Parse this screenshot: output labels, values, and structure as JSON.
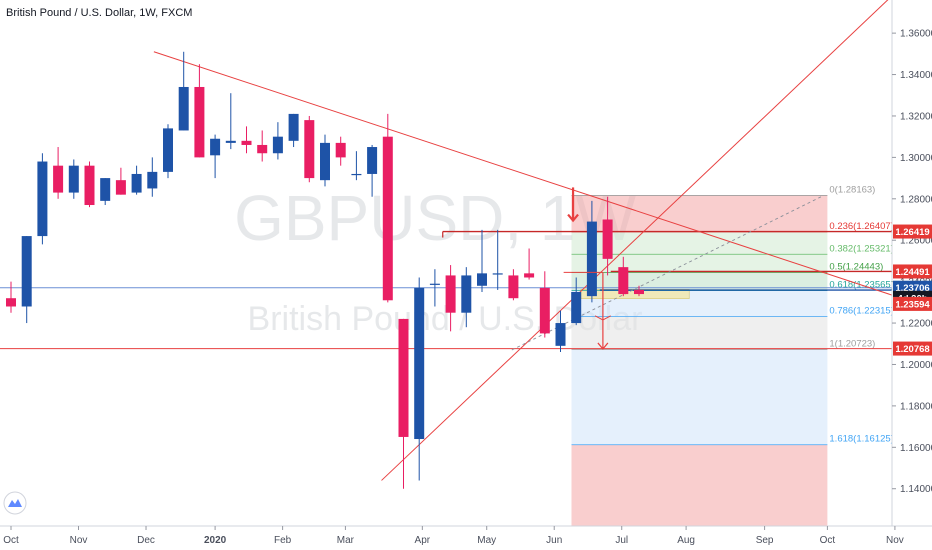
{
  "header": {
    "title": "British Pound / U.S. Dollar, 1W, FXCM"
  },
  "watermark": {
    "symbol": "GBPUSD, 1W",
    "name": "British Pound / U.S. Dollar"
  },
  "colors": {
    "bull": "#1e53a7",
    "bear": "#e91e63",
    "trend": "#e84141",
    "fib_red": "#f4a6a6",
    "fib_green": "#cfe9cf",
    "fib_blue": "#cfe4fa",
    "fib_grey": "#e2e2e2",
    "axis_bg": "#ffffff",
    "badge_red": "#e53935",
    "badge_blue": "#1e53a7",
    "badge_dark": "#131722"
  },
  "chart_data": {
    "type": "candlestick",
    "yrange": [
      1.122,
      1.376
    ],
    "yticks": [
      "1.36000",
      "1.34000",
      "1.32000",
      "1.30000",
      "1.28000",
      "1.26000",
      "1.24000",
      "1.22000",
      "1.20000",
      "1.18000",
      "1.16000",
      "1.14000"
    ],
    "xticks": [
      {
        "label": "Oct",
        "i": 0
      },
      {
        "label": "Nov",
        "i": 4.3
      },
      {
        "label": "Dec",
        "i": 8.6
      },
      {
        "label": "2020",
        "i": 13
      },
      {
        "label": "Feb",
        "i": 17.3
      },
      {
        "label": "Mar",
        "i": 21.3
      },
      {
        "label": "Apr",
        "i": 26.2
      },
      {
        "label": "May",
        "i": 30.3
      },
      {
        "label": "Jun",
        "i": 34.6
      },
      {
        "label": "Jul",
        "i": 38.9
      },
      {
        "label": "Aug",
        "i": 43
      },
      {
        "label": "Sep",
        "i": 48
      },
      {
        "label": "Oct",
        "i": 52
      },
      {
        "label": "Nov",
        "i": 56.3
      }
    ],
    "candles": [
      {
        "o": 1.232,
        "h": 1.24,
        "l": 1.225,
        "c": 1.228
      },
      {
        "o": 1.228,
        "h": 1.262,
        "l": 1.22,
        "c": 1.262
      },
      {
        "o": 1.262,
        "h": 1.302,
        "l": 1.258,
        "c": 1.298
      },
      {
        "o": 1.296,
        "h": 1.305,
        "l": 1.28,
        "c": 1.283
      },
      {
        "o": 1.283,
        "h": 1.299,
        "l": 1.28,
        "c": 1.296
      },
      {
        "o": 1.296,
        "h": 1.298,
        "l": 1.276,
        "c": 1.277
      },
      {
        "o": 1.279,
        "h": 1.29,
        "l": 1.277,
        "c": 1.29
      },
      {
        "o": 1.289,
        "h": 1.295,
        "l": 1.282,
        "c": 1.282
      },
      {
        "o": 1.283,
        "h": 1.296,
        "l": 1.282,
        "c": 1.292
      },
      {
        "o": 1.285,
        "h": 1.3,
        "l": 1.281,
        "c": 1.293
      },
      {
        "o": 1.293,
        "h": 1.316,
        "l": 1.29,
        "c": 1.314
      },
      {
        "o": 1.313,
        "h": 1.351,
        "l": 1.313,
        "c": 1.334
      },
      {
        "o": 1.334,
        "h": 1.345,
        "l": 1.3,
        "c": 1.3
      },
      {
        "o": 1.301,
        "h": 1.311,
        "l": 1.29,
        "c": 1.309
      },
      {
        "o": 1.307,
        "h": 1.331,
        "l": 1.304,
        "c": 1.308
      },
      {
        "o": 1.308,
        "h": 1.315,
        "l": 1.302,
        "c": 1.306
      },
      {
        "o": 1.306,
        "h": 1.313,
        "l": 1.298,
        "c": 1.302
      },
      {
        "o": 1.302,
        "h": 1.317,
        "l": 1.299,
        "c": 1.31
      },
      {
        "o": 1.308,
        "h": 1.321,
        "l": 1.305,
        "c": 1.321
      },
      {
        "o": 1.318,
        "h": 1.32,
        "l": 1.288,
        "c": 1.29
      },
      {
        "o": 1.289,
        "h": 1.311,
        "l": 1.286,
        "c": 1.307
      },
      {
        "o": 1.307,
        "h": 1.31,
        "l": 1.296,
        "c": 1.3
      },
      {
        "o": 1.292,
        "h": 1.303,
        "l": 1.289,
        "c": 1.292
      },
      {
        "o": 1.292,
        "h": 1.306,
        "l": 1.281,
        "c": 1.305
      },
      {
        "o": 1.31,
        "h": 1.321,
        "l": 1.23,
        "c": 1.231
      },
      {
        "o": 1.222,
        "h": 1.222,
        "l": 1.14,
        "c": 1.165
      },
      {
        "o": 1.164,
        "h": 1.242,
        "l": 1.144,
        "c": 1.237
      },
      {
        "o": 1.239,
        "h": 1.246,
        "l": 1.228,
        "c": 1.239
      },
      {
        "o": 1.243,
        "h": 1.248,
        "l": 1.216,
        "c": 1.225
      },
      {
        "o": 1.225,
        "h": 1.247,
        "l": 1.218,
        "c": 1.243
      },
      {
        "o": 1.238,
        "h": 1.265,
        "l": 1.235,
        "c": 1.244
      },
      {
        "o": 1.244,
        "h": 1.265,
        "l": 1.236,
        "c": 1.244
      },
      {
        "o": 1.243,
        "h": 1.246,
        "l": 1.231,
        "c": 1.232
      },
      {
        "o": 1.244,
        "h": 1.256,
        "l": 1.241,
        "c": 1.242
      },
      {
        "o": 1.237,
        "h": 1.245,
        "l": 1.213,
        "c": 1.215
      },
      {
        "o": 1.209,
        "h": 1.226,
        "l": 1.206,
        "c": 1.22
      },
      {
        "o": 1.22,
        "h": 1.242,
        "l": 1.219,
        "c": 1.235
      },
      {
        "o": 1.233,
        "h": 1.279,
        "l": 1.23,
        "c": 1.269
      },
      {
        "o": 1.27,
        "h": 1.281,
        "l": 1.243,
        "c": 1.251
      },
      {
        "o": 1.247,
        "h": 1.252,
        "l": 1.233,
        "c": 1.234
      },
      {
        "o": 1.236,
        "h": 1.238,
        "l": 1.233,
        "c": 1.234
      }
    ],
    "fib": {
      "start_i": 35.7,
      "end_i": 52.0,
      "label_i": 52.0,
      "levels": [
        {
          "label": "0(1.28163)",
          "price": 1.28163,
          "color": "#9e9e9e"
        },
        {
          "label": "0.236(1.26407)",
          "price": 1.26407,
          "color": "#e53935"
        },
        {
          "label": "0.382(1.25321)",
          "price": 1.25321,
          "color": "#66bb6a"
        },
        {
          "label": "0.5(1.24443)",
          "price": 1.24443,
          "color": "#43a047"
        },
        {
          "label": "0.618(1.23565)",
          "price": 1.23565,
          "color": "#26a69a"
        },
        {
          "label": "0.786(1.22315)",
          "price": 1.22315,
          "color": "#42a5f5"
        },
        {
          "label": "1(1.20723)",
          "price": 1.20723,
          "color": "#9e9e9e"
        },
        {
          "label": "1.618(1.16125)",
          "price": 1.16125,
          "color": "#42a5f5"
        }
      ]
    },
    "price_badges": [
      {
        "label": "1.26419",
        "price": 1.26419,
        "kind": "red"
      },
      {
        "label": "1.24491",
        "price": 1.24491,
        "kind": "red"
      },
      {
        "label": "1.23706",
        "price": 1.23706,
        "kind": "blue"
      },
      {
        "label": "4d 20h",
        "price": 1.2322,
        "kind": "dark"
      },
      {
        "label": "1.23594",
        "price": 1.22925,
        "kind": "red"
      },
      {
        "label": "1.20768",
        "price": 1.20768,
        "kind": "red"
      }
    ],
    "lines": {
      "horizontal_red": [
        1.20768
      ],
      "horizontal_blue": [
        1.23706
      ],
      "resistance_1": {
        "price": 1.26419,
        "from_i": 27.5
      },
      "resistance_2": {
        "price": 1.24491,
        "from_i": 38.2
      },
      "support_3": {
        "price": 1.23594,
        "from_i": 37.5
      }
    }
  }
}
